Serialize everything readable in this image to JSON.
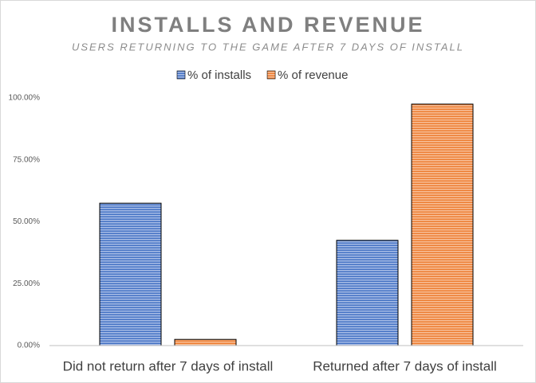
{
  "chart_data": {
    "type": "bar",
    "title": "INSTALLS AND REVENUE",
    "subtitle": "USERS RETURNING TO THE GAME AFTER 7 DAYS OF INSTALL",
    "categories": [
      "Did not return after 7 days of install",
      "Returned after 7 days of install"
    ],
    "series": [
      {
        "name": "% of installs",
        "color": "#4472c4",
        "values": [
          57.5,
          42.5
        ]
      },
      {
        "name": "% of revenue",
        "color": "#ed7d31",
        "values": [
          2.5,
          97.5
        ]
      }
    ],
    "ylim": [
      0,
      100
    ],
    "yticks": [
      {
        "value": 0,
        "label": "0.00%"
      },
      {
        "value": 25,
        "label": "25.00%"
      },
      {
        "value": 50,
        "label": "50.00%"
      },
      {
        "value": 75,
        "label": "75.00%"
      },
      {
        "value": 100,
        "label": "100.00%"
      }
    ],
    "grid": false,
    "legend": "top"
  }
}
